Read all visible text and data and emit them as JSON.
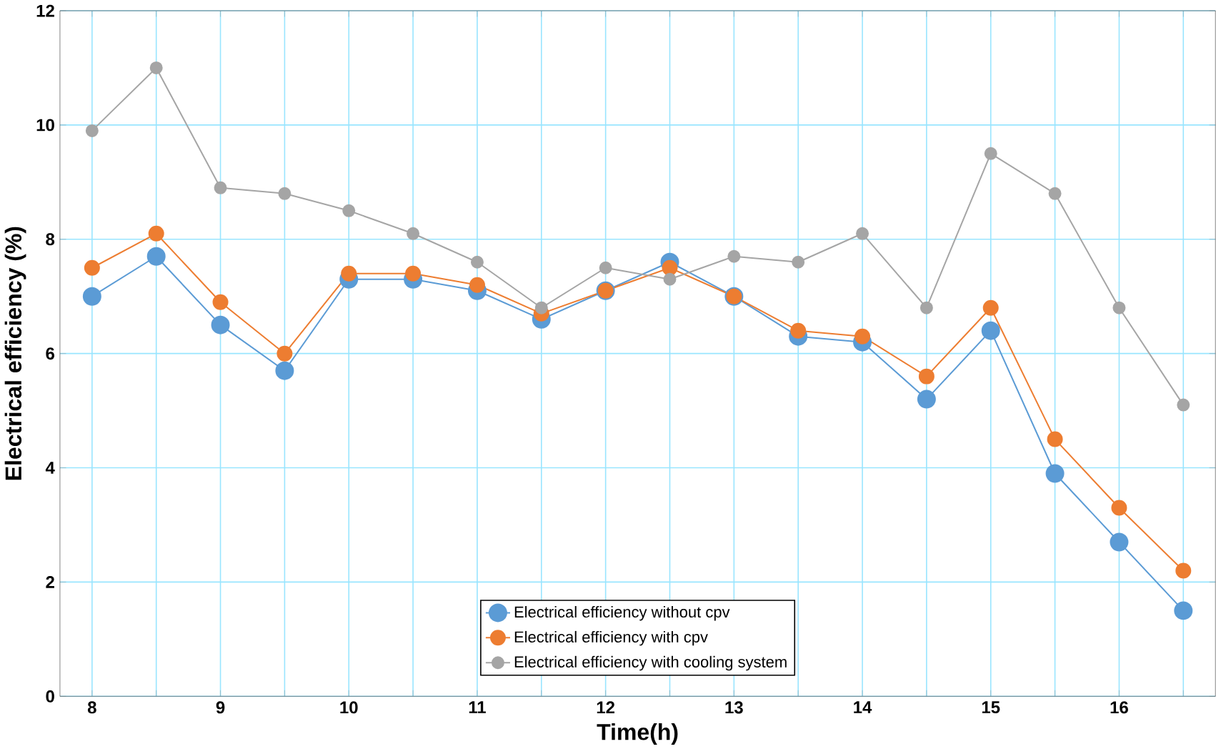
{
  "chart_data": {
    "type": "line",
    "xlabel": "Time(h)",
    "ylabel": "Electrical efficiency (%)",
    "x": [
      8,
      8.5,
      9,
      9.5,
      10,
      10.5,
      11,
      11.5,
      12,
      12.5,
      13,
      13.5,
      14,
      14.5,
      15,
      15.5,
      16,
      16.5
    ],
    "series": [
      {
        "name": "Electrical efficiency without cpv",
        "color": "#5b9bd5",
        "values": [
          7.0,
          7.7,
          6.5,
          5.7,
          7.3,
          7.3,
          7.1,
          6.6,
          7.1,
          7.6,
          7.0,
          6.3,
          6.2,
          5.2,
          6.4,
          3.9,
          2.7,
          1.5
        ]
      },
      {
        "name": "Electrical efficiency with cpv",
        "color": "#ed7d31",
        "values": [
          7.5,
          8.1,
          6.9,
          6.0,
          7.4,
          7.4,
          7.2,
          6.7,
          7.1,
          7.5,
          7.0,
          6.4,
          6.3,
          5.6,
          6.8,
          4.5,
          3.3,
          2.2
        ]
      },
      {
        "name": "Electrical efficiency with cooling system",
        "color": "#a5a5a5",
        "values": [
          9.9,
          11.0,
          8.9,
          8.8,
          8.5,
          8.1,
          7.6,
          6.8,
          7.5,
          7.3,
          7.7,
          7.6,
          8.1,
          6.8,
          9.5,
          8.8,
          6.8,
          5.1
        ]
      }
    ],
    "xlim": [
      7.75,
      16.75
    ],
    "xticks": [
      8,
      {
        "value": 8.5,
        "label": null
      },
      9,
      {
        "value": 9.5,
        "label": null
      },
      10,
      {
        "value": 10.5,
        "label": null
      },
      11,
      {
        "value": 11.5,
        "label": null
      },
      12,
      {
        "value": 12.5,
        "label": null
      },
      13,
      {
        "value": 13.5,
        "label": null
      },
      14,
      {
        "value": 14.5,
        "label": null
      },
      15,
      {
        "value": 15.5,
        "label": null
      },
      16,
      {
        "value": 16.5,
        "label": null
      }
    ],
    "ylim": [
      0,
      12
    ],
    "yticks": [
      0,
      2,
      4,
      6,
      8,
      10,
      12
    ],
    "grid": true,
    "legend": "bottom",
    "marker": "circle",
    "line_style": "solid"
  }
}
